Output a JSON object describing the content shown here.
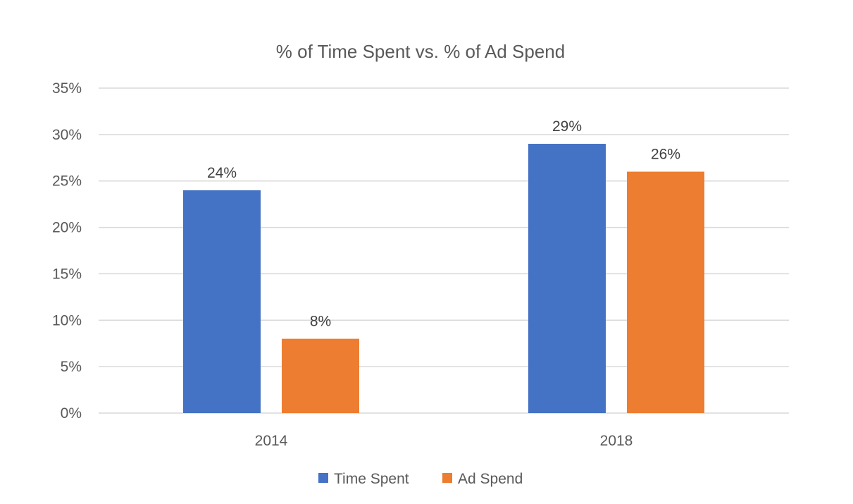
{
  "chart_data": {
    "type": "bar",
    "title": "% of Time Spent vs. % of Ad Spend",
    "xlabel": "",
    "ylabel": "",
    "categories": [
      "2014",
      "2018"
    ],
    "series": [
      {
        "name": "Time Spent",
        "values": [
          24,
          29
        ],
        "color": "#4472c4",
        "labels": [
          "24%",
          "29%"
        ]
      },
      {
        "name": "Ad Spend",
        "values": [
          8,
          26
        ],
        "color": "#ed7d31",
        "labels": [
          "8%",
          "26%"
        ]
      }
    ],
    "ylim": [
      0,
      35
    ],
    "yticks": [
      {
        "value": 0,
        "label": "0%"
      },
      {
        "value": 5,
        "label": "5%"
      },
      {
        "value": 10,
        "label": "10%"
      },
      {
        "value": 15,
        "label": "15%"
      },
      {
        "value": 20,
        "label": "20%"
      },
      {
        "value": 25,
        "label": "25%"
      },
      {
        "value": 30,
        "label": "30%"
      },
      {
        "value": 35,
        "label": "35%"
      }
    ],
    "grid": true,
    "legend": "bottom"
  }
}
